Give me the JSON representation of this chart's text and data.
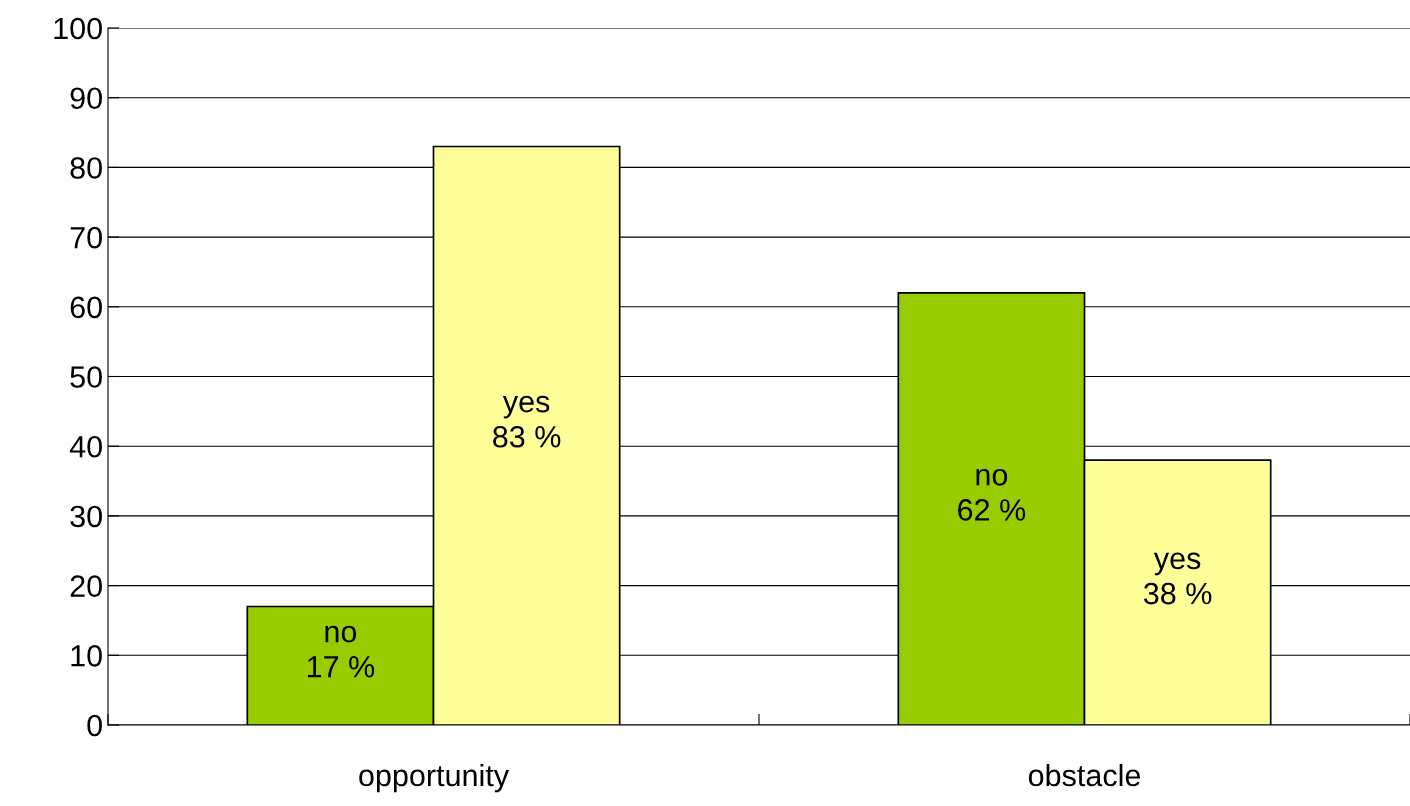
{
  "chart_data": {
    "type": "bar",
    "categories": [
      "opportunity",
      "obstacle"
    ],
    "series": [
      {
        "name": "no",
        "color": "#99cc00",
        "values": [
          17,
          62
        ],
        "value_labels": [
          "17 %",
          "62 %"
        ]
      },
      {
        "name": "yes",
        "color": "#ffff99",
        "values": [
          83,
          38
        ],
        "value_labels": [
          "83 %",
          "38 %"
        ]
      }
    ],
    "ylim": [
      0,
      100
    ],
    "yticks": [
      0,
      10,
      20,
      30,
      40,
      50,
      60,
      70,
      80,
      90,
      100
    ],
    "grid": "y",
    "legend": false
  }
}
